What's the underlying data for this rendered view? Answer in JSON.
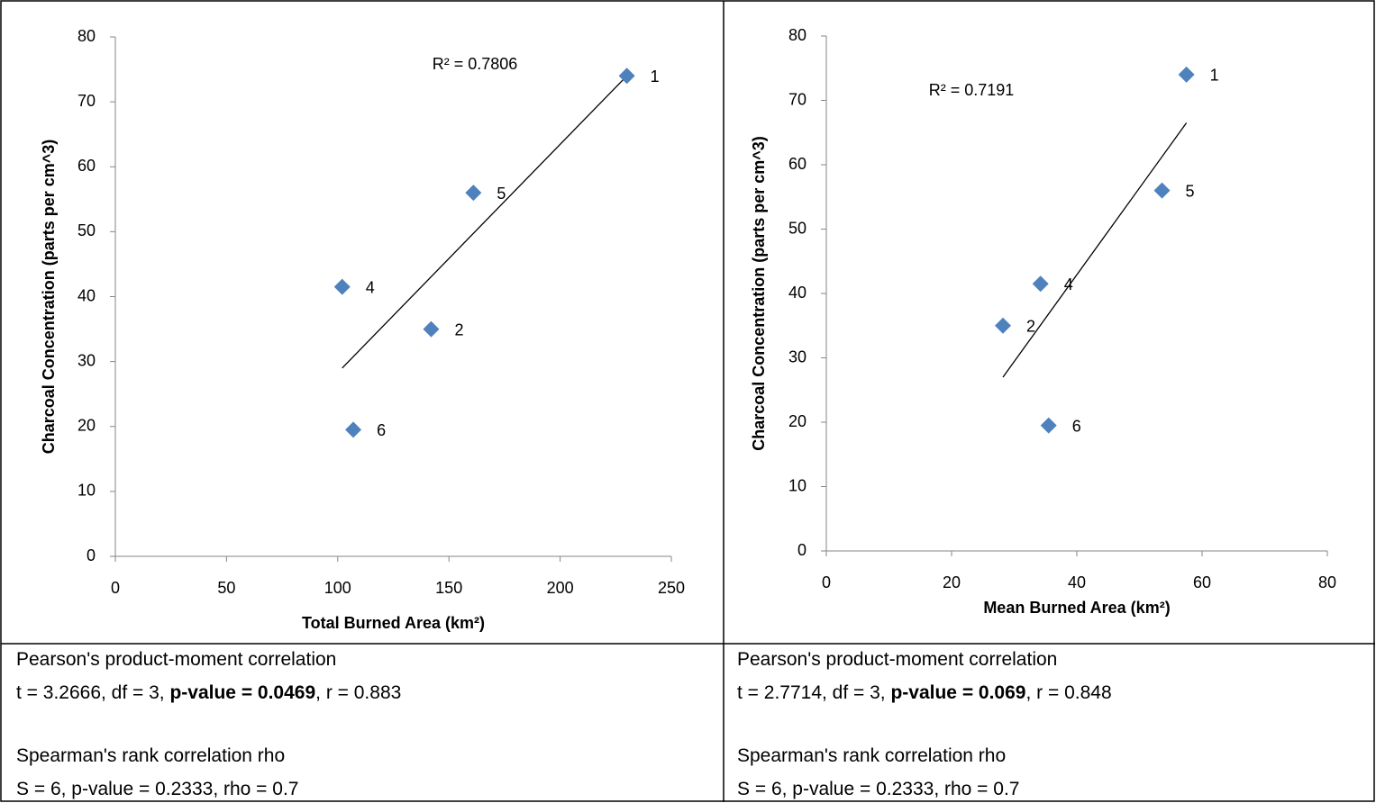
{
  "chart_data": [
    {
      "type": "scatter",
      "xlabel": "Total Burned Area (km²)",
      "ylabel": "Charcoal Concentration (parts per cm^3)",
      "series": [
        {
          "color": "#4f81bd",
          "x": [
            230,
            142,
            102,
            161,
            107
          ],
          "values": [
            74,
            35,
            41.5,
            56,
            19.5
          ],
          "point_labels": [
            "1",
            "2",
            "4",
            "5",
            "6"
          ]
        }
      ],
      "trendline": {
        "x": [
          102,
          230
        ],
        "y": [
          29,
          74
        ]
      },
      "annotation": "R² = 0.7806",
      "xlim": [
        0,
        250
      ],
      "xticks": [
        0,
        50,
        100,
        150,
        200,
        250
      ],
      "ylim": [
        0,
        80
      ],
      "yticks": [
        0,
        10,
        20,
        30,
        40,
        50,
        60,
        70,
        80
      ],
      "grid": false
    },
    {
      "type": "scatter",
      "xlabel": "Mean Burned Area (km²)",
      "ylabel": "Charcoal Concentration (parts per cm^3)",
      "series": [
        {
          "color": "#4f81bd",
          "x": [
            57.5,
            28.2,
            34.2,
            53.6,
            35.5
          ],
          "values": [
            74,
            35,
            41.5,
            56,
            19.5
          ],
          "point_labels": [
            "1",
            "2",
            "4",
            "5",
            "6"
          ]
        }
      ],
      "trendline": {
        "x": [
          28.2,
          57.5
        ],
        "y": [
          27,
          66.5
        ]
      },
      "annotation": "R² = 0.7191",
      "xlim": [
        0,
        80
      ],
      "xticks": [
        0,
        20,
        40,
        60,
        80
      ],
      "ylim": [
        0,
        80
      ],
      "yticks": [
        0,
        10,
        20,
        30,
        40,
        50,
        60,
        70,
        80
      ],
      "grid": false
    }
  ],
  "stats": [
    {
      "pearson_title": "Pearson's product-moment correlation",
      "pearson_line": [
        "t = 3.2666, df = 3, ",
        "p-value = 0.0469",
        ", r = 0.883"
      ],
      "spearman_title": "Spearman's rank correlation rho",
      "spearman_line": "S = 6, p-value = 0.2333, rho = 0.7"
    },
    {
      "pearson_title": "Pearson's product-moment correlation",
      "pearson_line": [
        "t = 2.7714, df = 3, ",
        "p-value = 0.069",
        ", r = 0.848"
      ],
      "spearman_title": "Spearman's rank correlation rho",
      "spearman_line": "S = 6, p-value = 0.2333, rho = 0.7"
    }
  ]
}
